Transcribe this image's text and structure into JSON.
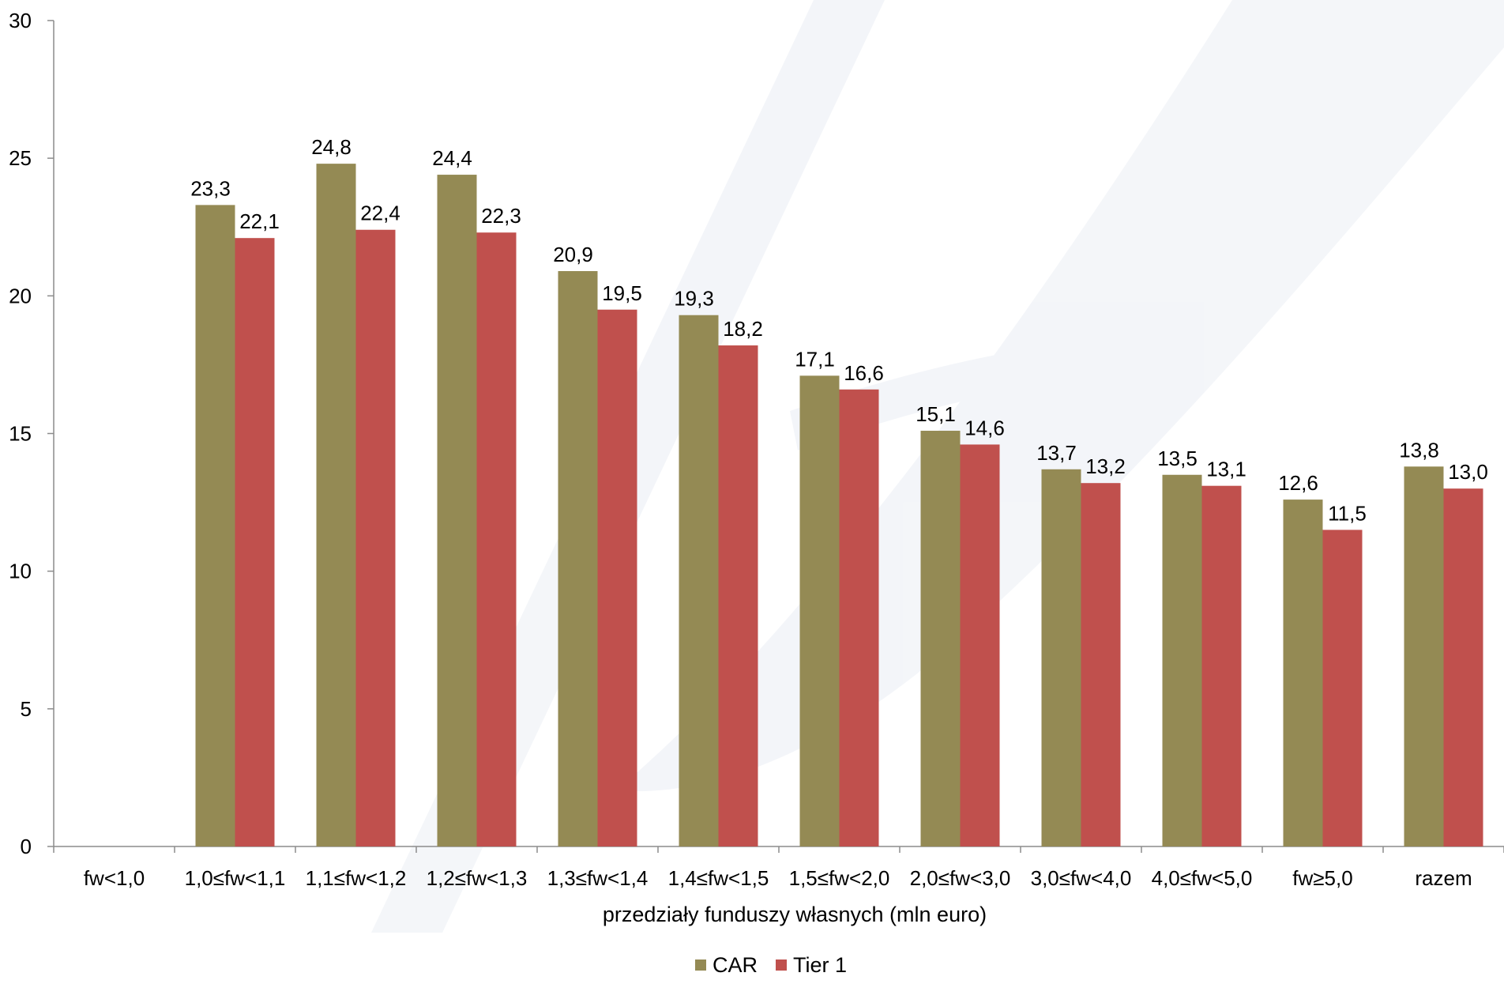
{
  "chart_data": {
    "type": "bar",
    "title": "",
    "xlabel": "przedziały funduszy własnych (mln euro)",
    "ylabel": "",
    "ylim": [
      0,
      30
    ],
    "yticks": [
      "0",
      "5",
      "10",
      "15",
      "20",
      "25",
      "30"
    ],
    "categories": [
      "fw<1,0",
      "1,0≤fw<1,1",
      "1,1≤fw<1,2",
      "1,2≤fw<1,3",
      "1,3≤fw<1,4",
      "1,4≤fw<1,5",
      "1,5≤fw<2,0",
      "2,0≤fw<3,0",
      "3,0≤fw<4,0",
      "4,0≤fw<5,0",
      "fw≥5,0",
      "razem"
    ],
    "series": [
      {
        "name": "CAR",
        "color": "#948a54",
        "values": [
          null,
          23.3,
          24.8,
          24.4,
          20.9,
          19.3,
          17.1,
          15.1,
          13.7,
          13.5,
          12.6,
          13.8
        ],
        "labels": [
          "",
          "23,3",
          "24,8",
          "24,4",
          "20,9",
          "19,3",
          "17,1",
          "15,1",
          "13,7",
          "13,5",
          "12,6",
          "13,8"
        ]
      },
      {
        "name": "Tier 1",
        "color": "#c0504d",
        "values": [
          null,
          22.1,
          22.4,
          22.3,
          19.5,
          18.2,
          16.6,
          14.6,
          13.2,
          13.1,
          11.5,
          13.0
        ],
        "labels": [
          "",
          "22,1",
          "22,4",
          "22,3",
          "19,5",
          "18,2",
          "16,6",
          "14,6",
          "13,2",
          "13,1",
          "11,5",
          "13,0"
        ]
      }
    ],
    "legend_position": "bottom-center",
    "grid": false
  }
}
